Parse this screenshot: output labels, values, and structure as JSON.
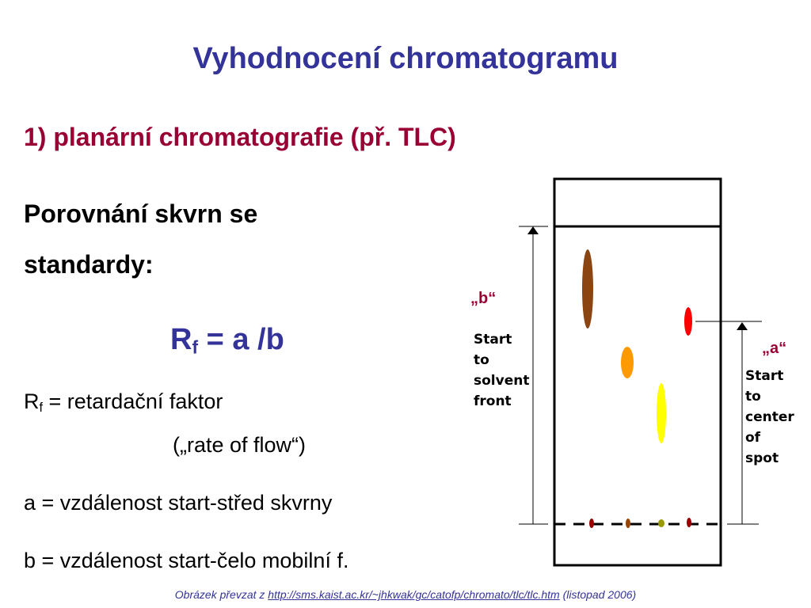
{
  "title": "Vyhodnocení chromatogramu",
  "subtitle": "1) planární chromatografie (př. TLC)",
  "intro": {
    "line1": "Porovnání skvrn se",
    "line2": "standardy:"
  },
  "formula": {
    "symbol": "R",
    "subscript": "f",
    "rest": "= a /b"
  },
  "definitions": {
    "rf": {
      "symbol": "R",
      "subscript": "f",
      "text": "= retardační faktor",
      "note": "(„rate of flow“)"
    },
    "a": "a = vzdálenost start-střed skvrny",
    "b": "b = vzdálenost start-čelo mobilní f."
  },
  "diagram": {
    "label_b": "„b“",
    "label_a": "„a“",
    "solvent_front": [
      "Start",
      "to",
      "solvent",
      "front"
    ],
    "center_of_spot": [
      "Start",
      "to",
      "center",
      "of",
      "spot"
    ]
  },
  "footer": {
    "prefix": "Obrázek převzat z",
    "link": "http://sms.kaist.ac.kr/~jhkwak/gc/catofp/chromato/tlc/tlc.htm",
    "suffix": "(listopad 2006)"
  }
}
